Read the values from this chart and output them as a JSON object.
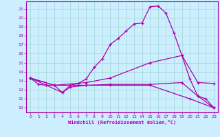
{
  "xlabel": "Windchill (Refroidissement éolien,°C)",
  "xlim": [
    -0.5,
    23.5
  ],
  "ylim": [
    9.5,
    21.8
  ],
  "xticks": [
    0,
    1,
    2,
    3,
    4,
    5,
    6,
    7,
    8,
    9,
    10,
    11,
    12,
    13,
    14,
    15,
    16,
    17,
    18,
    19,
    20,
    21,
    22,
    23
  ],
  "yticks": [
    10,
    11,
    12,
    13,
    14,
    15,
    16,
    17,
    18,
    19,
    20,
    21
  ],
  "background_color": "#cceeff",
  "line_color": "#aa00aa",
  "grid_color": "#aadddd",
  "lines": [
    {
      "x": [
        0,
        1,
        2,
        3,
        4,
        5,
        6,
        7,
        8,
        9,
        10,
        11,
        12,
        13,
        14,
        15,
        16,
        17,
        18,
        19,
        20,
        21,
        22,
        23
      ],
      "y": [
        13.3,
        12.6,
        12.5,
        12.5,
        11.7,
        12.5,
        12.7,
        13.2,
        14.5,
        15.4,
        17.0,
        17.7,
        18.5,
        19.3,
        19.4,
        21.2,
        21.3,
        20.5,
        18.3,
        15.8,
        13.2,
        11.3,
        11.0,
        10.0
      ]
    },
    {
      "x": [
        0,
        3,
        7,
        10,
        15,
        19,
        21,
        23
      ],
      "y": [
        13.3,
        12.5,
        12.8,
        13.3,
        15.0,
        15.8,
        12.8,
        12.7
      ]
    },
    {
      "x": [
        0,
        3,
        7,
        10,
        15,
        20,
        23
      ],
      "y": [
        13.3,
        12.5,
        12.5,
        12.5,
        12.5,
        11.0,
        10.0
      ]
    },
    {
      "x": [
        0,
        2,
        4,
        5,
        7,
        10,
        15,
        19,
        21,
        23
      ],
      "y": [
        13.3,
        12.5,
        11.7,
        12.3,
        12.5,
        12.6,
        12.6,
        12.8,
        11.3,
        10.0
      ]
    }
  ]
}
